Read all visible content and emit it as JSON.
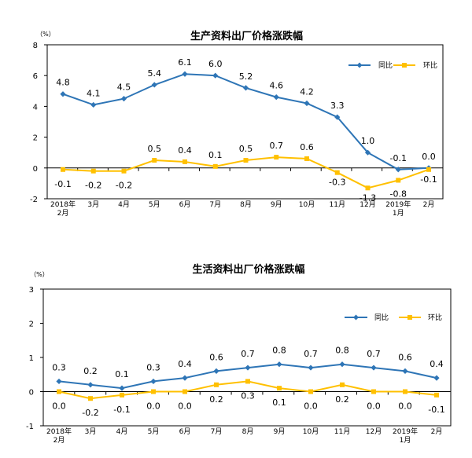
{
  "chart_data": [
    {
      "type": "line",
      "title": "生产资料出厂价格涨跌幅",
      "unit": "（%）",
      "ylim": [
        -2,
        8
      ],
      "yticks": [
        "8",
        "6",
        "4",
        "2",
        "0",
        "-2"
      ],
      "categories": [
        {
          "line1": "2018年",
          "line2": "2月"
        },
        {
          "line1": "3月",
          "line2": ""
        },
        {
          "line1": "4月",
          "line2": ""
        },
        {
          "line1": "5月",
          "line2": ""
        },
        {
          "line1": "6月",
          "line2": ""
        },
        {
          "line1": "7月",
          "line2": ""
        },
        {
          "line1": "8月",
          "line2": ""
        },
        {
          "line1": "9月",
          "line2": ""
        },
        {
          "line1": "10月",
          "line2": ""
        },
        {
          "line1": "11月",
          "line2": ""
        },
        {
          "line1": "12月",
          "line2": ""
        },
        {
          "line1": "2019年",
          "line2": "1月"
        },
        {
          "line1": "2月",
          "line2": ""
        }
      ],
      "series": [
        {
          "name": "同比",
          "color": "#2e75b6",
          "marker": "diamond",
          "values": [
            4.8,
            4.1,
            4.5,
            5.4,
            6.1,
            6.0,
            5.2,
            4.6,
            4.2,
            3.3,
            1.0,
            -0.1,
            0.0
          ],
          "labels": [
            "4.8",
            "4.1",
            "4.5",
            "5.4",
            "6.1",
            "6.0",
            "5.2",
            "4.6",
            "4.2",
            "3.3",
            "1.0",
            "-0.1",
            "0.0"
          ]
        },
        {
          "name": "环比",
          "color": "#ffc000",
          "marker": "square",
          "values": [
            -0.1,
            -0.2,
            -0.2,
            0.5,
            0.4,
            0.1,
            0.5,
            0.7,
            0.6,
            -0.3,
            -1.3,
            -0.8,
            -0.1
          ],
          "labels": [
            "-0.1",
            "-0.2",
            "-0.2",
            "0.5",
            "0.4",
            "0.1",
            "0.5",
            "0.7",
            "0.6",
            "-0.3",
            "-1.3",
            "-0.8",
            "-0.1"
          ]
        }
      ],
      "legend": "top-right",
      "grid": false
    },
    {
      "type": "line",
      "title": "生活资料出厂价格涨跌幅",
      "unit": "（%）",
      "ylim": [
        -1,
        3
      ],
      "yticks": [
        "3",
        "2",
        "1",
        "0",
        "-1"
      ],
      "categories": [
        {
          "line1": "2018年",
          "line2": "2月"
        },
        {
          "line1": "3月",
          "line2": ""
        },
        {
          "line1": "4月",
          "line2": ""
        },
        {
          "line1": "5月",
          "line2": ""
        },
        {
          "line1": "6月",
          "line2": ""
        },
        {
          "line1": "7月",
          "line2": ""
        },
        {
          "line1": "8月",
          "line2": ""
        },
        {
          "line1": "9月",
          "line2": ""
        },
        {
          "line1": "10月",
          "line2": ""
        },
        {
          "line1": "11月",
          "line2": ""
        },
        {
          "line1": "12月",
          "line2": ""
        },
        {
          "line1": "2019年",
          "line2": "1月"
        },
        {
          "line1": "2月",
          "line2": ""
        }
      ],
      "series": [
        {
          "name": "同比",
          "color": "#2e75b6",
          "marker": "diamond",
          "values": [
            0.3,
            0.2,
            0.1,
            0.3,
            0.4,
            0.6,
            0.7,
            0.8,
            0.7,
            0.8,
            0.7,
            0.6,
            0.4
          ],
          "labels": [
            "0.3",
            "0.2",
            "0.1",
            "0.3",
            "0.4",
            "0.6",
            "0.7",
            "0.8",
            "0.7",
            "0.8",
            "0.7",
            "0.6",
            "0.4"
          ]
        },
        {
          "name": "环比",
          "color": "#ffc000",
          "marker": "square",
          "values": [
            0.0,
            -0.2,
            -0.1,
            0.0,
            0.0,
            0.2,
            0.3,
            0.1,
            0.0,
            0.2,
            0.0,
            0.0,
            -0.1
          ],
          "labels": [
            "0.0",
            "-0.2",
            "-0.1",
            "0.0",
            "0.0",
            "0.2",
            "0.3",
            "0.1",
            "0.0",
            "0.2",
            "0.0",
            "0.0",
            "-0.1"
          ]
        }
      ],
      "legend": "top-right",
      "grid": false
    }
  ]
}
